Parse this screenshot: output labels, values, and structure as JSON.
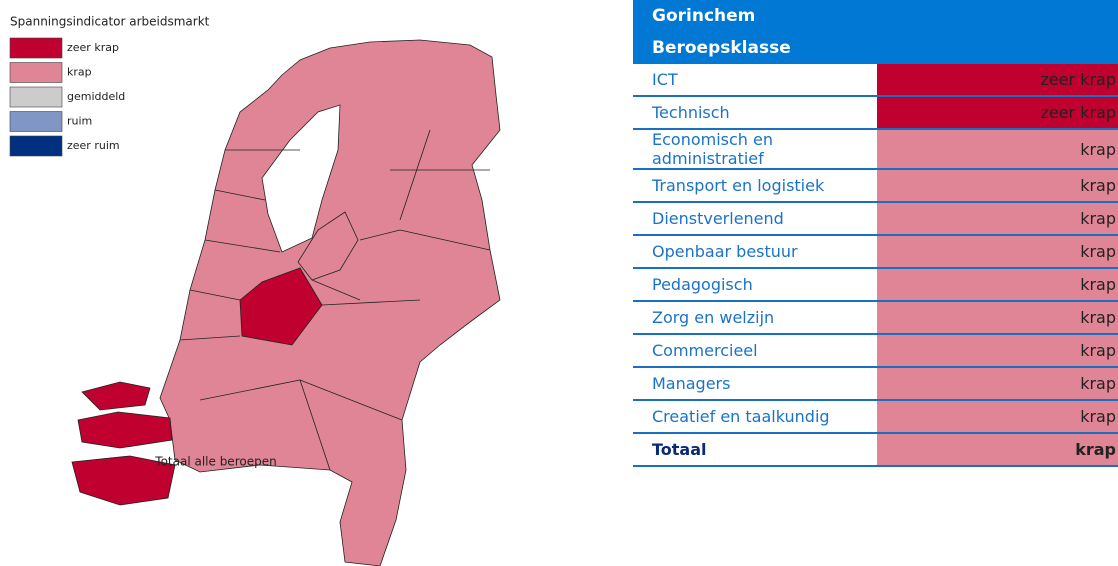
{
  "legend": {
    "title": "Spanningsindicator arbeidsmarkt",
    "items": [
      {
        "name": "zeer krap",
        "color": "#c0002e"
      },
      {
        "name": "krap",
        "color": "#e08595"
      },
      {
        "name": "gemiddeld",
        "color": "#cccccc"
      },
      {
        "name": "ruim",
        "color": "#8096c4"
      },
      {
        "name": "zeer ruim",
        "color": "#00307f"
      }
    ]
  },
  "map": {
    "caption": "Totaal alle beroepen"
  },
  "table": {
    "region": "Gorinchem",
    "header": "Beroepsklasse",
    "rows": [
      {
        "label": "ICT",
        "value": "zeer krap"
      },
      {
        "label": "Technisch",
        "value": "zeer krap"
      },
      {
        "label": "Economisch en administratief",
        "value": "krap"
      },
      {
        "label": "Transport en logistiek",
        "value": "krap"
      },
      {
        "label": "Dienstverlenend",
        "value": "krap"
      },
      {
        "label": "Openbaar bestuur",
        "value": "krap"
      },
      {
        "label": "Pedagogisch",
        "value": "krap"
      },
      {
        "label": "Zorg en welzijn",
        "value": "krap"
      },
      {
        "label": "Commercieel",
        "value": "krap"
      },
      {
        "label": "Managers",
        "value": "krap"
      },
      {
        "label": "Creatief en taalkundig",
        "value": "krap"
      },
      {
        "label": "Totaal",
        "value": "krap"
      }
    ]
  }
}
